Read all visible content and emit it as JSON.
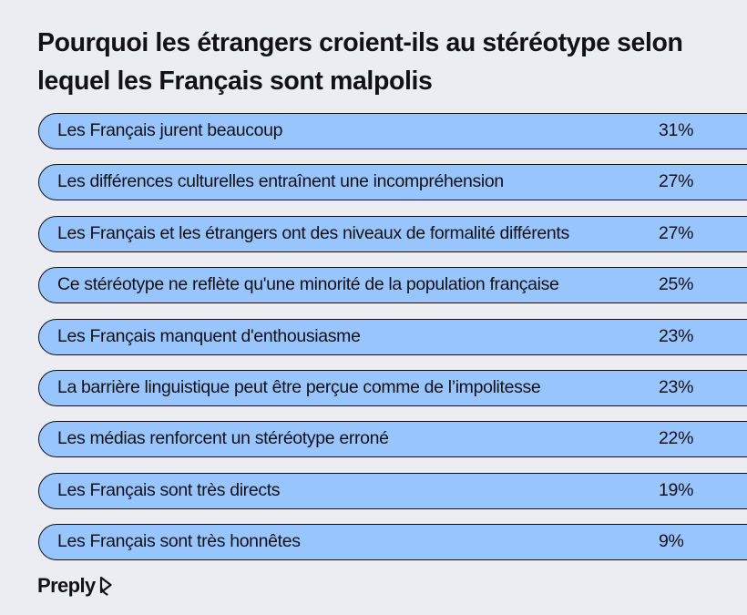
{
  "chart_data": {
    "type": "bar",
    "title": "Pourquoi les étrangers croient-ils au stéréotype selon lequel les Français sont malpolis",
    "unit": "%",
    "categories": [
      "Les Français jurent beaucoup",
      "Les différences culturelles entraînent une incompréhension",
      "Les Français et les étrangers ont des niveaux de formalité différents",
      "Ce stéréotype ne reflète qu'une minorité de la population française",
      "Les Français manquent d'enthousiasme",
      "La barrière linguistique peut être perçue comme de l’impolitesse",
      "Les médias renforcent un stéréotype erroné",
      "Les Français sont très directs",
      "Les Français sont très honnêtes"
    ],
    "values": [
      31,
      27,
      27,
      25,
      23,
      23,
      22,
      19,
      9
    ],
    "value_labels": [
      "31%",
      "27%",
      "27%",
      "25%",
      "23%",
      "23%",
      "22%",
      "19%",
      "9%"
    ],
    "bar_color": "#99C5FF",
    "background_color": "#ECEDF2"
  },
  "logo": {
    "text": "Preply"
  }
}
